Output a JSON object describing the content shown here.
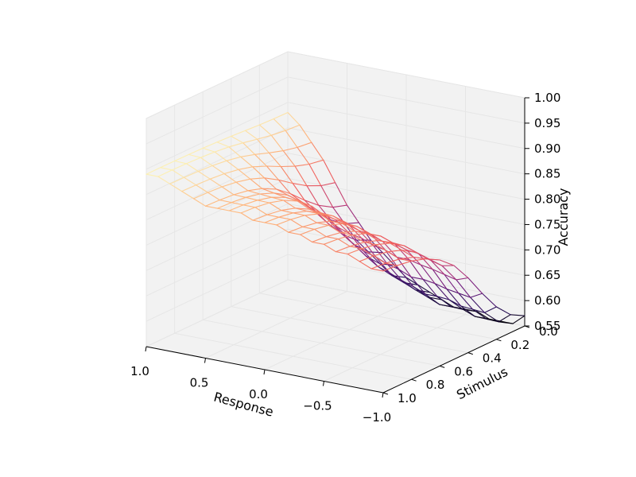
{
  "chart_data": {
    "type": "surface-wireframe-3d",
    "xlabel": "Response",
    "ylabel": "Stimulus",
    "zlabel": "Accuracy",
    "x_range": [
      1.0,
      -1.0
    ],
    "y_range": [
      0.0,
      1.0
    ],
    "zlim": [
      0.55,
      1.0
    ],
    "x_ticks": [
      "1.0",
      "0.5",
      "0.0",
      "−0.5",
      "−1.0"
    ],
    "y_ticks": [
      "0.0",
      "0.2",
      "0.4",
      "0.6",
      "0.8",
      "1.0"
    ],
    "z_ticks": [
      "0.55",
      "0.60",
      "0.65",
      "0.70",
      "0.75",
      "0.80",
      "0.85",
      "0.90",
      "0.95",
      "1.00"
    ],
    "response_samples": [
      1.0,
      0.9,
      0.8,
      0.7,
      0.6,
      0.5,
      0.4,
      0.3,
      0.2,
      0.1,
      0.0,
      -0.1,
      -0.2,
      -0.3,
      -0.4,
      -0.5,
      -0.6,
      -0.7,
      -0.8,
      -0.9,
      -1.0
    ],
    "stimulus_samples": [
      0.0,
      0.1,
      0.2,
      0.3,
      0.4,
      0.5,
      0.6,
      0.7,
      0.8,
      0.9,
      1.0
    ],
    "accuracy_at_stimulus_0": [
      0.89,
      0.89,
      0.88,
      0.87,
      0.86,
      0.85,
      0.85,
      0.85,
      0.85,
      0.84,
      0.84,
      0.84,
      0.83,
      0.83,
      0.82,
      0.82,
      0.81,
      0.81,
      0.8,
      0.79,
      0.79
    ],
    "accuracy_at_stimulus_1": [
      0.88,
      0.86,
      0.83,
      0.8,
      0.76,
      0.72,
      0.69,
      0.66,
      0.64,
      0.62,
      0.6,
      0.59,
      0.58,
      0.57,
      0.56,
      0.56,
      0.56,
      0.55,
      0.55,
      0.55,
      0.57
    ],
    "stimulus_profile": [
      0.0,
      0.01,
      0.03,
      0.07,
      0.14,
      0.25,
      0.42,
      0.62,
      0.8,
      0.93,
      1.0
    ],
    "colormap": [
      "#000004",
      "#2c115f",
      "#721f81",
      "#b73779",
      "#f1605d",
      "#feb078",
      "#fcfdbf"
    ],
    "pane_color": "#f2f2f2",
    "grid_color": "#e6e6e6",
    "axis_color": "#000000"
  }
}
